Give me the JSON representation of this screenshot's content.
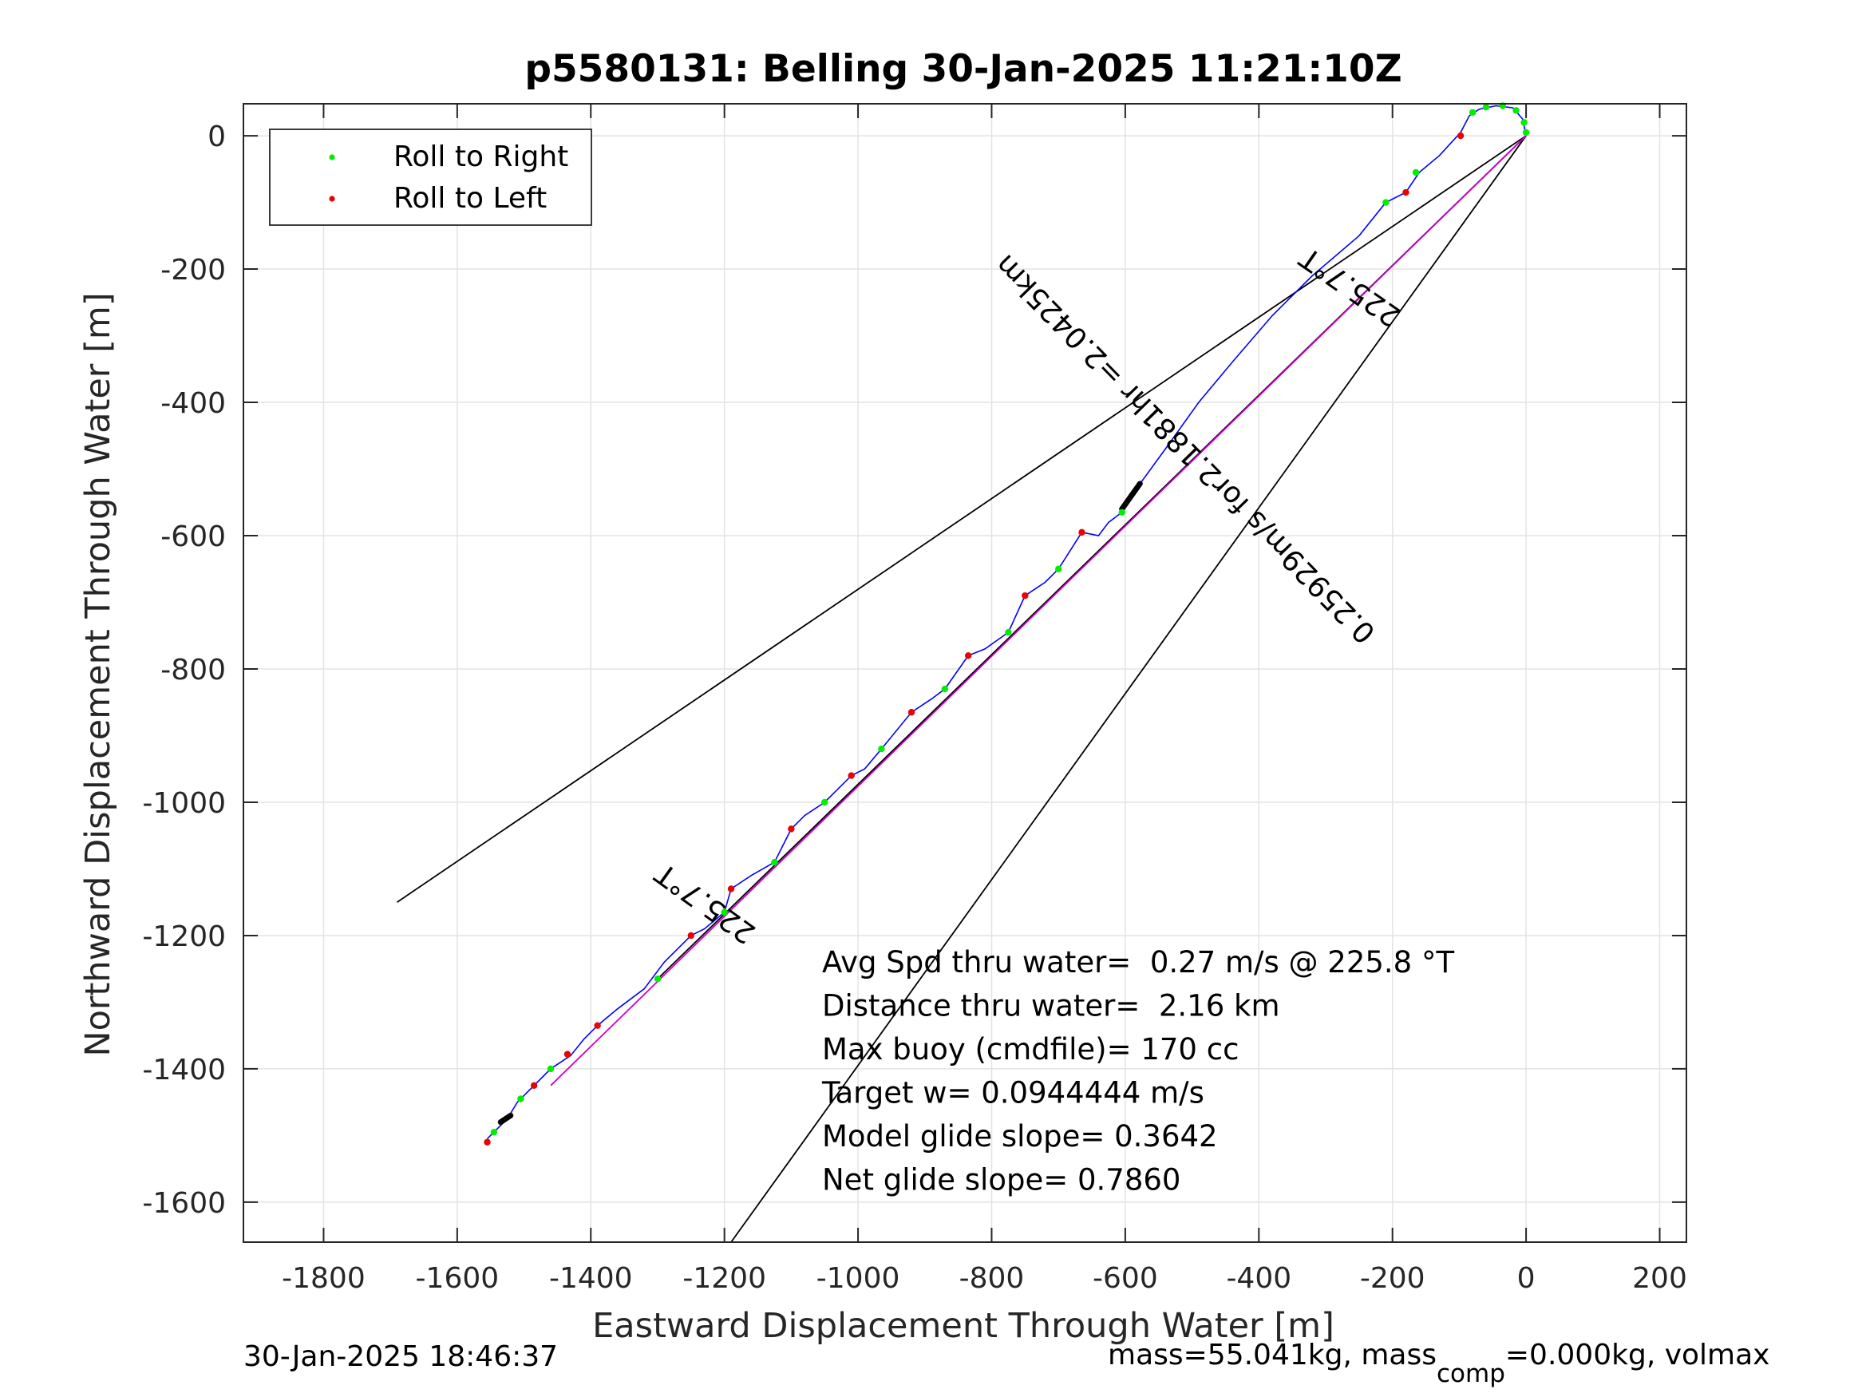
{
  "chart_data": {
    "type": "line",
    "title": "p5580131: Belling 30-Jan-2025 11:21:10Z",
    "xlabel": "Eastward Displacement Through Water [m]",
    "ylabel": "Northward Displacement Through Water [m]",
    "xlim": [
      -1920,
      240
    ],
    "ylim": [
      -1660,
      48
    ],
    "xticks": [
      -1800,
      -1600,
      -1400,
      -1200,
      -1000,
      -800,
      -600,
      -400,
      -200,
      0,
      200
    ],
    "yticks": [
      0,
      -200,
      -400,
      -600,
      -800,
      -1000,
      -1200,
      -1400,
      -1600
    ],
    "grid": true,
    "legend": {
      "placement": "top-left",
      "entries": [
        {
          "label": "Roll to Right",
          "color": "#00ee00"
        },
        {
          "label": "Roll to Left",
          "color": "#ee0000"
        }
      ]
    },
    "track": {
      "color": "#0000ff",
      "points": [
        [
          0,
          0
        ],
        [
          -5,
          25
        ],
        [
          -20,
          42
        ],
        [
          -45,
          45
        ],
        [
          -70,
          40
        ],
        [
          -85,
          30
        ],
        [
          -98,
          5
        ],
        [
          -130,
          -30
        ],
        [
          -160,
          -55
        ],
        [
          -180,
          -85
        ],
        [
          -210,
          -100
        ],
        [
          -250,
          -150
        ],
        [
          -320,
          -210
        ],
        [
          -380,
          -270
        ],
        [
          -440,
          -340
        ],
        [
          -490,
          -400
        ],
        [
          -540,
          -470
        ],
        [
          -580,
          -525
        ],
        [
          -605,
          -565
        ],
        [
          -625,
          -580
        ],
        [
          -640,
          -600
        ],
        [
          -665,
          -595
        ],
        [
          -700,
          -650
        ],
        [
          -720,
          -670
        ],
        [
          -750,
          -690
        ],
        [
          -775,
          -745
        ],
        [
          -810,
          -770
        ],
        [
          -835,
          -780
        ],
        [
          -870,
          -830
        ],
        [
          -890,
          -845
        ],
        [
          -920,
          -865
        ],
        [
          -965,
          -920
        ],
        [
          -990,
          -950
        ],
        [
          -1010,
          -960
        ],
        [
          -1050,
          -1000
        ],
        [
          -1080,
          -1020
        ],
        [
          -1100,
          -1040
        ],
        [
          -1125,
          -1090
        ],
        [
          -1160,
          -1110
        ],
        [
          -1190,
          -1130
        ],
        [
          -1200,
          -1165
        ],
        [
          -1230,
          -1190
        ],
        [
          -1250,
          -1200
        ],
        [
          -1290,
          -1240
        ],
        [
          -1320,
          -1280
        ],
        [
          -1360,
          -1310
        ],
        [
          -1390,
          -1335
        ],
        [
          -1410,
          -1355
        ],
        [
          -1430,
          -1380
        ],
        [
          -1460,
          -1400
        ],
        [
          -1485,
          -1425
        ],
        [
          -1510,
          -1450
        ],
        [
          -1525,
          -1475
        ],
        [
          -1545,
          -1495
        ],
        [
          -1555,
          -1505
        ]
      ]
    },
    "roll_right_points": [
      [
        0,
        5
      ],
      [
        -3,
        20
      ],
      [
        -15,
        38
      ],
      [
        -35,
        45
      ],
      [
        -60,
        43
      ],
      [
        -80,
        35
      ],
      [
        -165,
        -55
      ],
      [
        -210,
        -100
      ],
      [
        -605,
        -565
      ],
      [
        -700,
        -650
      ],
      [
        -775,
        -745
      ],
      [
        -870,
        -830
      ],
      [
        -965,
        -920
      ],
      [
        -1050,
        -1000
      ],
      [
        -1125,
        -1090
      ],
      [
        -1200,
        -1165
      ],
      [
        -1300,
        -1265
      ],
      [
        -1460,
        -1400
      ],
      [
        -1505,
        -1445
      ],
      [
        -1545,
        -1495
      ]
    ],
    "roll_left_points": [
      [
        -98,
        0
      ],
      [
        -180,
        -85
      ],
      [
        -665,
        -595
      ],
      [
        -750,
        -690
      ],
      [
        -835,
        -780
      ],
      [
        -920,
        -865
      ],
      [
        -1010,
        -960
      ],
      [
        -1100,
        -1040
      ],
      [
        -1190,
        -1130
      ],
      [
        -1250,
        -1200
      ],
      [
        -1390,
        -1335
      ],
      [
        -1435,
        -1378
      ],
      [
        -1485,
        -1425
      ],
      [
        -1555,
        -1510
      ]
    ],
    "black_segments": [
      [
        [
          -578,
          -522
        ],
        [
          -605,
          -560
        ]
      ],
      [
        [
          -1520,
          -1470
        ],
        [
          -1535,
          -1480
        ]
      ]
    ],
    "heading_lines": [
      {
        "color": "#000000",
        "points": [
          [
            0,
            0
          ],
          [
            -1690,
            -1150
          ]
        ]
      },
      {
        "color": "#000000",
        "points": [
          [
            0,
            0
          ],
          [
            -1190,
            -1660
          ]
        ]
      },
      {
        "color": "#000000",
        "points": [
          [
            0,
            0
          ],
          [
            -1300,
            -1265
          ]
        ]
      },
      {
        "color": "#cc00cc",
        "points": [
          [
            0,
            0
          ],
          [
            -1460,
            -1425
          ]
        ]
      }
    ],
    "annotations": [
      {
        "text": "225.7°T",
        "at": [
          -255,
          -215
        ],
        "angle": 214.7
      },
      {
        "text": "225.7°T",
        "at": [
          -1220,
          -1140
        ],
        "angle": 215.7
      },
      {
        "text": "0.25929m/s for2.1881hr =2.0425km",
        "at": [
          -500,
          -460
        ],
        "angle": 225.7
      }
    ],
    "stats": [
      "Avg Spd thru water=  0.27 m/s @ 225.8 °T",
      "Distance thru water=  2.16 km",
      "Max buoy (cmdfile)= 170 cc",
      "Target w= 0.0944444 m/s",
      "Model glide slope= 0.3642",
      "Net glide slope= 0.7860"
    ]
  },
  "footer": {
    "timestamp": "30-Jan-2025 18:46:37",
    "mass_prefix": "mass=55.041kg, mass",
    "mass_subscript": "comp",
    "mass_suffix": "=0.000kg, volmax"
  }
}
